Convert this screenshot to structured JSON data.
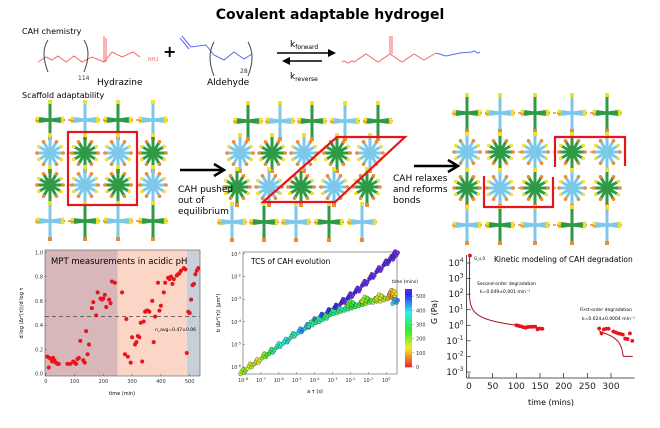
{
  "title": "Covalent adaptable hydrogel",
  "chemistry": {
    "section_label": "CAH chemistry",
    "reactant1_name": "Hydrazine",
    "reactant1_repeat": "114",
    "plus": "+",
    "reactant2_name": "Aldehyde",
    "reactant2_repeat": "28",
    "nh2": "NH2",
    "k_forward": "k",
    "k_forward_sub": "forward",
    "k_reverse": "k",
    "k_reverse_sub": "reverse",
    "colors": {
      "hydrazine": "#f26a6a",
      "aldehyde": "#5a6cf0"
    }
  },
  "scaffold": {
    "section_label": "Scaffold adaptability",
    "step1_text": [
      "CAH pushed",
      "out of",
      "equilibrium"
    ],
    "step2_text": [
      "CAH relaxes",
      "and reforms",
      "bonds"
    ],
    "colors": {
      "node_a": "#2f9a45",
      "node_b": "#7cc8ea",
      "highlight": "#e8141c"
    }
  },
  "chart_data": [
    {
      "type": "scatter",
      "title": "MPT measurements in acidic pH",
      "xlabel": "time (min)",
      "ylabel": "d log ⟨Δr²(τ)⟩/d log τ",
      "xlim": [
        -3,
        536
      ],
      "ylim": [
        -0.02,
        1.02
      ],
      "xticks": [
        0,
        100,
        200,
        300,
        400,
        500
      ],
      "yticks": [
        0.0,
        0.2,
        0.4,
        0.6,
        0.8,
        1.0
      ],
      "ytick_labels": [
        "0.0",
        "0.2",
        "0.4",
        "0.6",
        "0.8",
        "1.0"
      ],
      "regions": [
        {
          "from": -3,
          "to": 250,
          "color": "#d8b7ba"
        },
        {
          "from": 250,
          "to": 490,
          "color": "#fbd6c6"
        },
        {
          "from": 490,
          "to": 536,
          "color": "#c7cfd8"
        }
      ],
      "reference_line": {
        "y": 0.47,
        "label": "n_avg=0.47±0.06"
      },
      "point_color": "#e8141c",
      "x": [
        5,
        10,
        12,
        18,
        22,
        25,
        30,
        35,
        40,
        45,
        75,
        85,
        95,
        100,
        105,
        110,
        115,
        120,
        130,
        135,
        140,
        145,
        150,
        160,
        165,
        175,
        180,
        190,
        195,
        200,
        205,
        210,
        220,
        225,
        230,
        240,
        265,
        275,
        280,
        285,
        295,
        300,
        310,
        315,
        320,
        325,
        330,
        335,
        340,
        345,
        350,
        355,
        360,
        370,
        375,
        380,
        390,
        395,
        400,
        410,
        415,
        425,
        430,
        435,
        440,
        445,
        455,
        460,
        465,
        470,
        480,
        485,
        490,
        495,
        500,
        505,
        510,
        515,
        520,
        525,
        530
      ],
      "y": [
        0.14,
        0.05,
        0.13,
        0.12,
        0.1,
        0.13,
        0.11,
        0.09,
        0.08,
        0.08,
        0.08,
        0.08,
        0.1,
        0.09,
        0.08,
        0.12,
        0.13,
        0.27,
        0.11,
        0.09,
        0.35,
        0.16,
        0.24,
        0.54,
        0.59,
        0.48,
        0.67,
        0.62,
        0.61,
        0.62,
        0.65,
        0.55,
        0.61,
        0.58,
        0.76,
        0.75,
        0.67,
        0.16,
        0.45,
        0.14,
        0.09,
        0.3,
        0.24,
        0.26,
        0.31,
        0.3,
        0.42,
        0.1,
        0.43,
        0.51,
        0.52,
        0.52,
        0.51,
        0.6,
        0.26,
        0.47,
        0.75,
        0.52,
        0.56,
        0.67,
        0.75,
        0.79,
        0.78,
        0.8,
        0.74,
        0.78,
        0.81,
        0.82,
        0.83,
        0.85,
        0.87,
        0.86,
        0.17,
        0.51,
        0.5,
        0.61,
        0.73,
        0.74,
        0.82,
        0.85,
        0.87
      ]
    },
    {
      "type": "scatter",
      "title": "TCS of CAH evolution",
      "xlabel": "a τ (s)",
      "ylabel": "b ⟨Δr²(τ)⟩ (μm²)",
      "xscale": "log",
      "yscale": "log",
      "xlim": [
        1e-08,
        4
      ],
      "ylim": [
        5e-07,
        0.12
      ],
      "xtick_exponents": [
        -8,
        -7,
        -6,
        -5,
        -4,
        -3,
        -2,
        -1,
        0
      ],
      "ytick_exponents": [
        -6,
        -5,
        -4,
        -3,
        -2,
        -1
      ],
      "colorbar": {
        "label": "time (mins)",
        "ticks": [
          0,
          100,
          200,
          300,
          400,
          500
        ],
        "range": [
          0,
          550
        ]
      },
      "series": [
        {
          "x_log10": [
            -8,
            -7.6,
            -7.2,
            -6.8,
            -6.4,
            -6,
            -5.6,
            -5.2,
            -4.8,
            -4.4,
            -4,
            -3.6,
            -3.2,
            -2.8,
            -2.4,
            -2,
            -1.6,
            -1.2,
            -0.8,
            -0.4,
            0,
            0.3,
            0.5
          ],
          "y_log10": [
            -6.2,
            -5.95,
            -5.75,
            -5.5,
            -5.3,
            -5.05,
            -4.85,
            -4.6,
            -4.4,
            -4.2,
            -3.95,
            -3.75,
            -3.55,
            -3.35,
            -3.1,
            -2.85,
            -2.6,
            -2.3,
            -2.0,
            -1.7,
            -1.4,
            -1.2,
            -1.0
          ],
          "time": [
            180,
            150,
            120,
            200,
            300,
            350,
            380,
            330,
            420,
            430,
            450,
            480,
            500,
            520,
            530,
            540,
            540,
            550,
            550,
            550,
            550,
            550,
            550
          ]
        },
        {
          "x_log10": [
            -4.2,
            -3.8,
            -3.4,
            -3,
            -2.6,
            -2.2,
            -1.8,
            -1.4,
            -1,
            -0.6,
            -0.2,
            0.2,
            0.4,
            0.5,
            -2,
            -1.2,
            -0.4,
            0.3
          ],
          "y_log10": [
            -4.1,
            -3.95,
            -3.8,
            -3.6,
            -3.5,
            -3.4,
            -3.3,
            -3.2,
            -3.1,
            -3.05,
            -3.0,
            -2.9,
            -2.8,
            -3.1,
            -3.2,
            -3.0,
            -2.9,
            -2.7
          ],
          "time": [
            330,
            320,
            310,
            300,
            320,
            330,
            280,
            260,
            220,
            200,
            150,
            120,
            100,
            420,
            240,
            180,
            140,
            90
          ]
        }
      ]
    },
    {
      "type": "scatter",
      "title": "Kinetic modeling of CAH degradation",
      "xlabel": "time (mins)",
      "ylabel": "G (Pa)",
      "yscale": "log",
      "xlim": [
        -5,
        350
      ],
      "xticks": [
        0,
        50,
        100,
        150,
        200,
        250,
        300
      ],
      "ytick_exponents": [
        -3,
        -2,
        -1,
        0,
        1,
        2,
        3,
        4
      ],
      "initial_label": "G_s,0",
      "annotations": [
        {
          "text": "Second-order degradation",
          "k": "k=0.049±0.001 min⁻¹"
        },
        {
          "text": "First-order degradation",
          "k": "k=0.024±0.0004 min⁻¹"
        }
      ],
      "point_color": "#e8141c",
      "fit_color": "#a8141c",
      "x": [
        2,
        100,
        103,
        106,
        110,
        115,
        120,
        125,
        130,
        135,
        140,
        145,
        150,
        155,
        275,
        280,
        285,
        290,
        295,
        305,
        310,
        315,
        320,
        325,
        330,
        335,
        340,
        345
      ],
      "y": [
        30000,
        1.0,
        0.95,
        0.9,
        0.85,
        0.75,
        0.7,
        0.78,
        0.8,
        0.8,
        0.82,
        0.55,
        0.62,
        0.6,
        0.62,
        0.3,
        0.55,
        0.6,
        0.6,
        0.4,
        0.35,
        0.3,
        0.28,
        0.25,
        0.14,
        0.13,
        0.3,
        0.1
      ]
    }
  ]
}
